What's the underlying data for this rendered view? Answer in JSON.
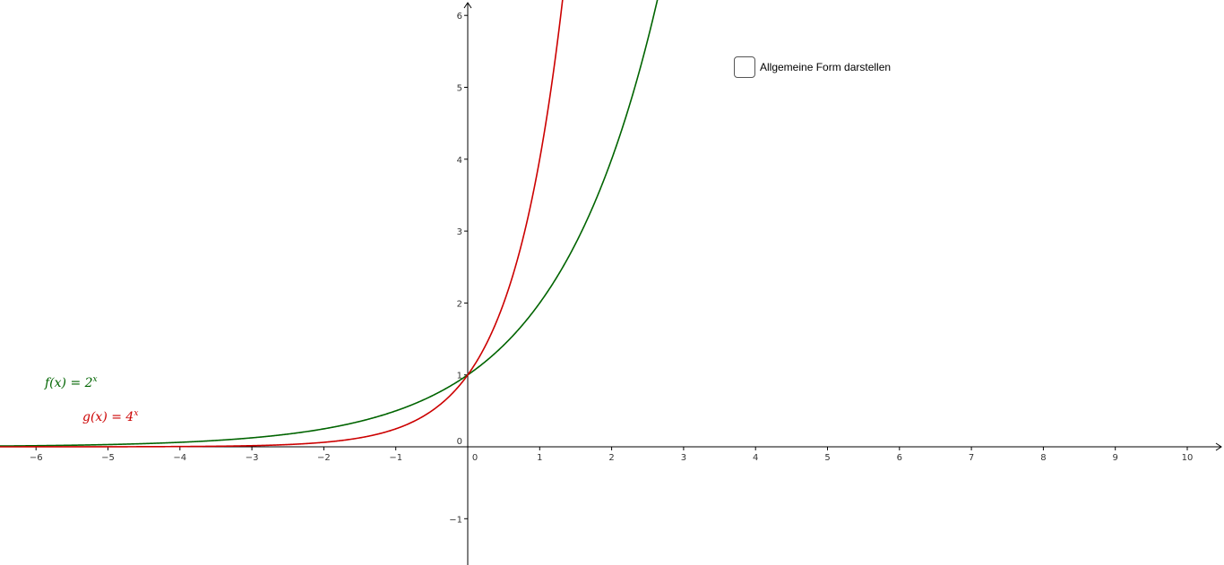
{
  "checkbox": {
    "label": "Allgemeine Form darstellen",
    "checked": false
  },
  "chart_data": {
    "type": "line",
    "title": "",
    "xlabel": "",
    "ylabel": "",
    "xlim": [
      -6.5,
      10.5
    ],
    "ylim": [
      -1.6,
      6.2
    ],
    "grid": false,
    "x_ticks": [
      -6,
      -5,
      -4,
      -3,
      -2,
      -1,
      0,
      1,
      2,
      3,
      4,
      5,
      6,
      7,
      8,
      9,
      10
    ],
    "x_tick_labels": [
      "−6",
      "−5",
      "−4",
      "−3",
      "−2",
      "−1",
      "0",
      "1",
      "2",
      "3",
      "4",
      "5",
      "6",
      "7",
      "8",
      "9",
      "10"
    ],
    "y_ticks": [
      -1,
      1,
      2,
      3,
      4,
      5,
      6
    ],
    "y_tick_labels": [
      "−1",
      "1",
      "2",
      "3",
      "4",
      "5",
      "6"
    ],
    "origin_label": "0",
    "series": [
      {
        "name": "f",
        "base": 2,
        "color": "#006400",
        "label_left": "f(x)  =  2",
        "label_exp": "x"
      },
      {
        "name": "g",
        "base": 4,
        "color": "#cc0000",
        "label_left": "g(x)  =  4",
        "label_exp": "x"
      }
    ]
  }
}
